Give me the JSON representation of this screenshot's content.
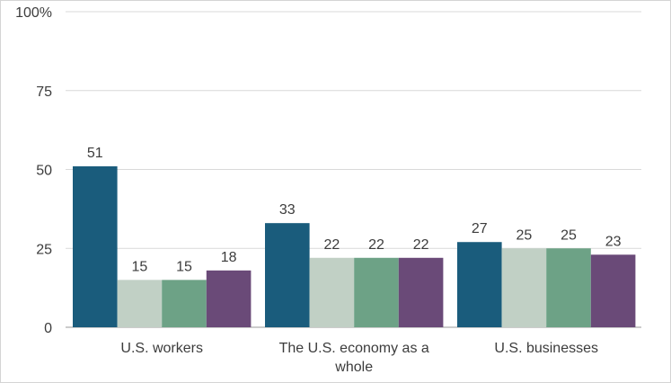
{
  "chart_data": {
    "type": "bar",
    "categories": [
      "U.S. workers",
      "The U.S. economy as a whole",
      "U.S. businesses"
    ],
    "category_lines": [
      [
        "U.S. workers"
      ],
      [
        "The U.S. economy as a",
        "whole"
      ],
      [
        "U.S. businesses"
      ]
    ],
    "series": [
      {
        "color": "#1a5c7c",
        "values": [
          51,
          33,
          27
        ]
      },
      {
        "color": "#c1d0c5",
        "values": [
          15,
          22,
          25
        ]
      },
      {
        "color": "#6da286",
        "values": [
          15,
          22,
          25
        ]
      },
      {
        "color": "#6a4a78",
        "values": [
          18,
          22,
          23
        ]
      }
    ],
    "y_ticks": [
      "0",
      "25",
      "50",
      "75",
      "100%"
    ],
    "ylim": [
      0,
      100
    ],
    "grid": true,
    "title": "",
    "xlabel": "",
    "ylabel": ""
  }
}
